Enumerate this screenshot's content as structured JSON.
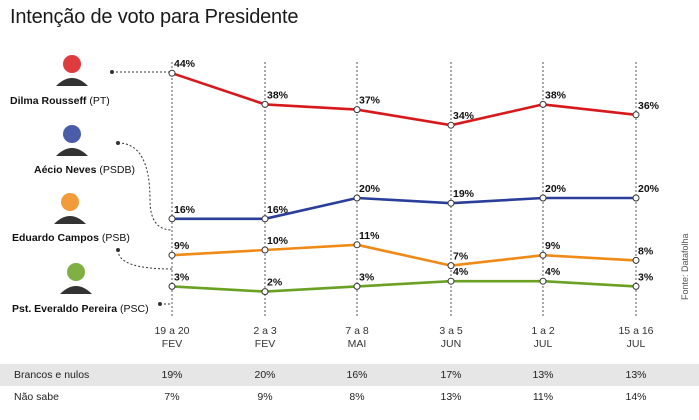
{
  "title": "Intenção de voto para Presidente",
  "source": "Fonte: Datafolha",
  "chart_data": {
    "type": "line",
    "categories": [
      {
        "line1": "19 a 20",
        "line2": "FEV"
      },
      {
        "line1": "2 a 3",
        "line2": "FEV"
      },
      {
        "line1": "7 a 8",
        "line2": "MAI"
      },
      {
        "line1": "3 a 5",
        "line2": "JUN"
      },
      {
        "line1": "1 a 2",
        "line2": "JUL"
      },
      {
        "line1": "15 a 16",
        "line2": "JUL"
      }
    ],
    "series": [
      {
        "name": "Dilma Rousseff",
        "party": "(PT)",
        "color": "#d7191c",
        "values": [
          44,
          38,
          37,
          34,
          38,
          36
        ],
        "labels": [
          "44%",
          "38%",
          "37%",
          "34%",
          "38%",
          "36%"
        ],
        "icon": "dilma-photo-icon"
      },
      {
        "name": "Aécio Neves",
        "party": "(PSDB)",
        "color": "#2b3f9a",
        "values": [
          16,
          16,
          20,
          19,
          20,
          20
        ],
        "labels": [
          "16%",
          "16%",
          "20%",
          "19%",
          "20%",
          "20%"
        ],
        "icon": "aecio-photo-icon"
      },
      {
        "name": "Eduardo Campos",
        "party": "(PSB)",
        "color": "#ef8a17",
        "values": [
          9,
          10,
          11,
          7,
          9,
          8
        ],
        "labels": [
          "9%",
          "10%",
          "11%",
          "7%",
          "9%",
          "8%"
        ],
        "icon": "campos-photo-icon"
      },
      {
        "name": "Pst. Everaldo Pereira",
        "party": "(PSC)",
        "color": "#6aa123",
        "values": [
          3,
          2,
          3,
          4,
          4,
          3
        ],
        "labels": [
          "3%",
          "2%",
          "3%",
          "4%",
          "4%",
          "3%"
        ],
        "icon": "everaldo-photo-icon"
      }
    ]
  },
  "table": {
    "rows": [
      {
        "label": "Brancos e nulos",
        "values": [
          "19%",
          "20%",
          "16%",
          "17%",
          "13%",
          "13%"
        ]
      },
      {
        "label": "Não sabe",
        "values": [
          "7%",
          "9%",
          "8%",
          "13%",
          "11%",
          "14%"
        ]
      }
    ]
  }
}
